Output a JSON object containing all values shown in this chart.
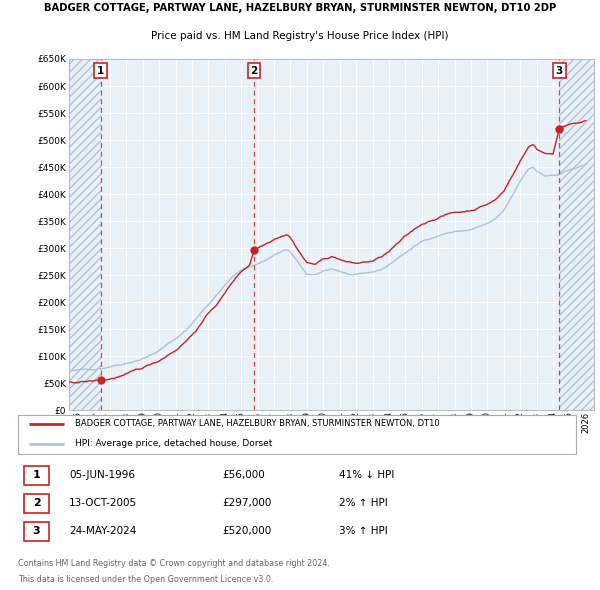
{
  "title": "BADGER COTTAGE, PARTWAY LANE, HAZELBURY BRYAN, STURMINSTER NEWTON, DT10 2DP",
  "subtitle": "Price paid vs. HM Land Registry's House Price Index (HPI)",
  "legend_property": "BADGER COTTAGE, PARTWAY LANE, HAZELBURY BRYAN, STURMINSTER NEWTON, DT10",
  "legend_hpi": "HPI: Average price, detached house, Dorset",
  "footer1": "Contains HM Land Registry data © Crown copyright and database right 2024.",
  "footer2": "This data is licensed under the Open Government Licence v3.0.",
  "transactions": [
    {
      "num": 1,
      "date": "05-JUN-1996",
      "price": 56000,
      "pct": "41%",
      "dir": "↓",
      "year_x": 1996.43
    },
    {
      "num": 2,
      "date": "13-OCT-2005",
      "price": 297000,
      "pct": "2%",
      "dir": "↑",
      "year_x": 2005.79
    },
    {
      "num": 3,
      "date": "24-MAY-2024",
      "price": 520000,
      "pct": "3%",
      "dir": "↑",
      "year_x": 2024.39
    }
  ],
  "hpi_color": "#aac4e0",
  "price_color": "#cc2222",
  "dashed_line_color": "#cc2222",
  "background_color": "#ffffff",
  "plot_bg_color": "#e8f0f8",
  "hatch_color": "#b0c4d8",
  "grid_color": "#ffffff",
  "ylim": [
    0,
    650000
  ],
  "xlim_left": 1994.5,
  "xlim_right": 2026.5
}
